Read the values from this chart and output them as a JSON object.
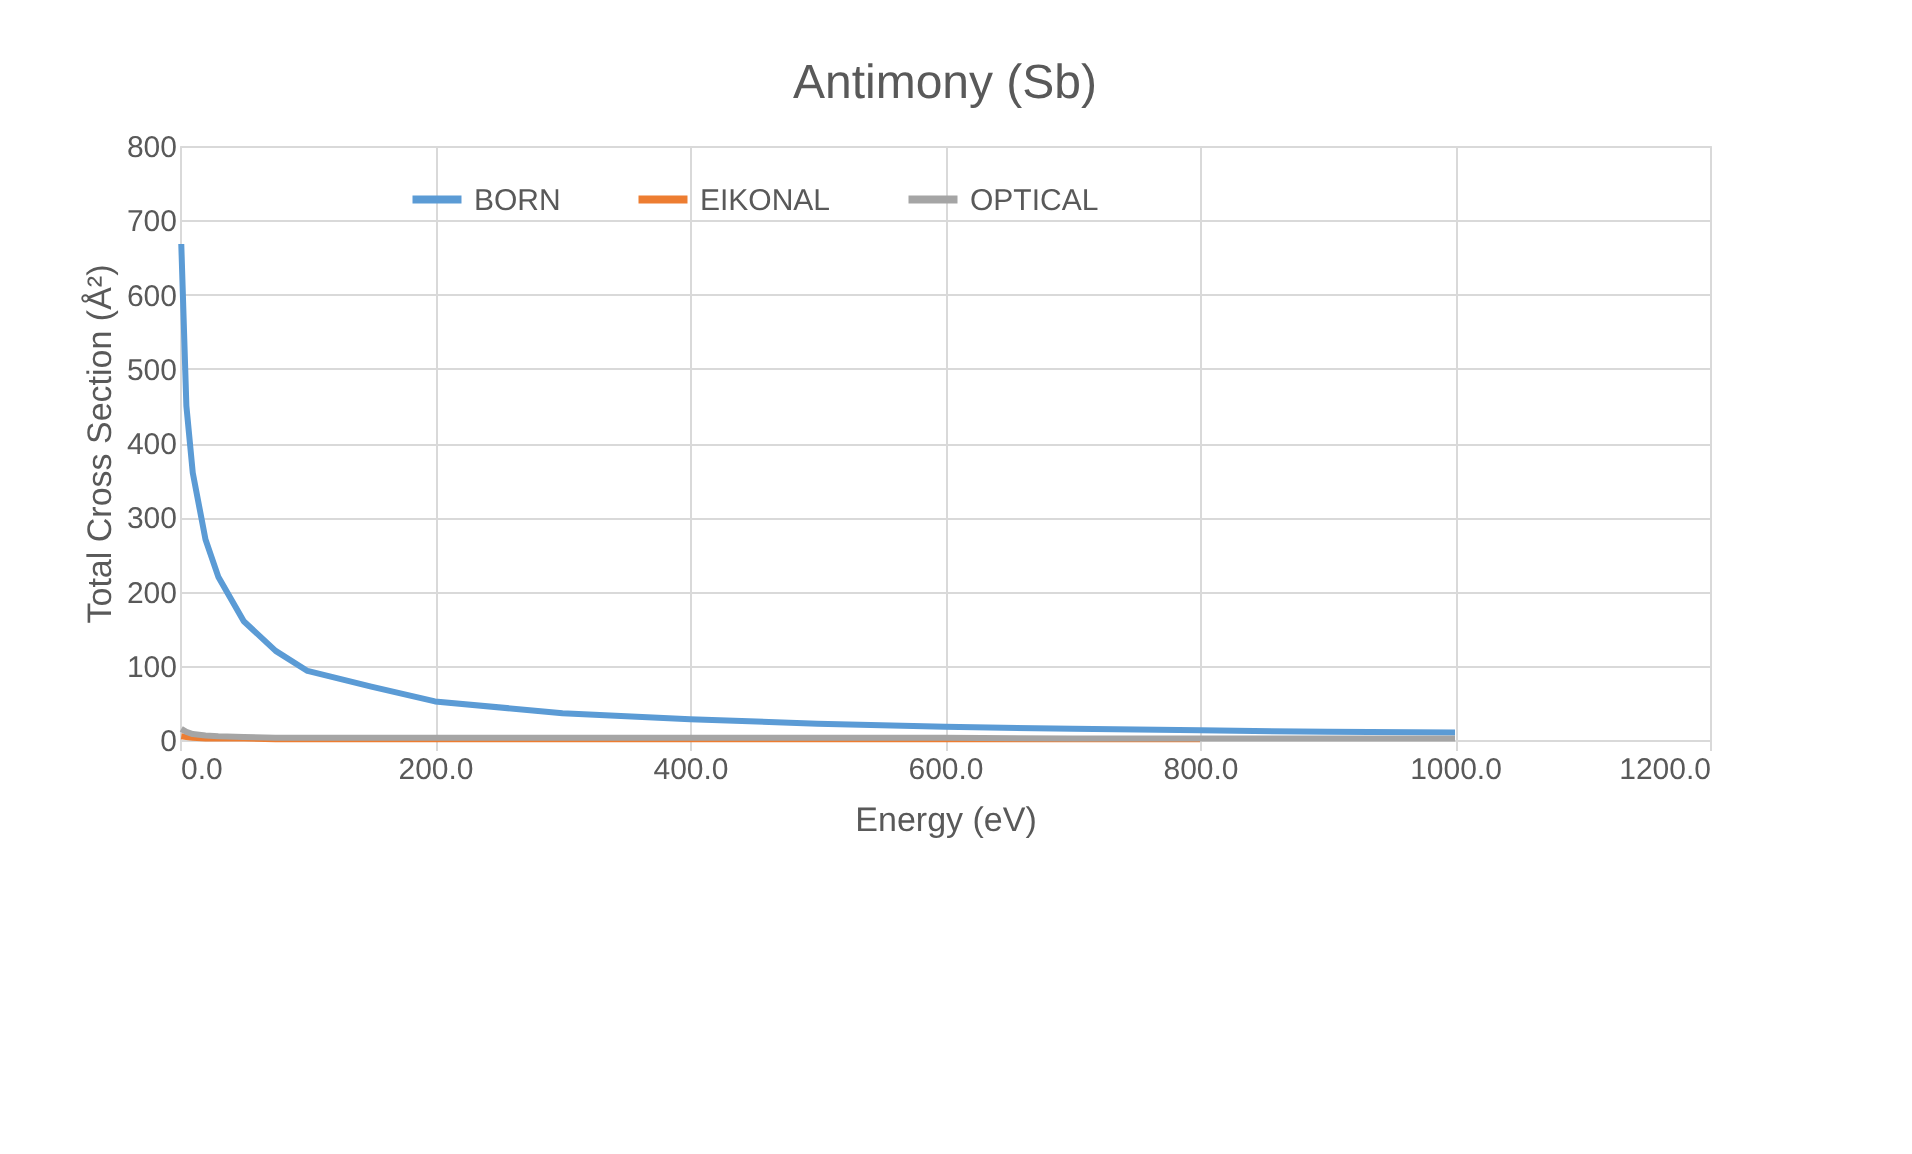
{
  "chart_data": {
    "type": "line",
    "title": "Antimony (Sb)",
    "xlabel": "Energy (eV)",
    "ylabel": "Total Cross Section (Å²)",
    "x": [
      1,
      5,
      10,
      20,
      30,
      50,
      75,
      100,
      150,
      200,
      300,
      400,
      500,
      600,
      700,
      800,
      900,
      1000
    ],
    "series": [
      {
        "name": "BORN",
        "color": "#5b9bd5",
        "values": [
          668,
          450,
          360,
          270,
          220,
          160,
          120,
          93,
          72,
          52,
          36,
          28,
          22,
          18,
          15,
          13,
          11,
          10
        ]
      },
      {
        "name": "EIKONAL",
        "color": "#ed7d31",
        "values": [
          5,
          4,
          3,
          2,
          2,
          2,
          1,
          1,
          1,
          1,
          1,
          1,
          1,
          1,
          1,
          1,
          null,
          null
        ]
      },
      {
        "name": "OPTICAL",
        "color": "#a5a5a5",
        "values": [
          15,
          11,
          8,
          6,
          5,
          4,
          3,
          3,
          3,
          3,
          3,
          3,
          3,
          3,
          2,
          2,
          2,
          2
        ]
      }
    ],
    "xlim": [
      0,
      1200
    ],
    "xticks": [
      {
        "value": 0,
        "label": "0.0"
      },
      {
        "value": 200,
        "label": "200.0"
      },
      {
        "value": 400,
        "label": "400.0"
      },
      {
        "value": 600,
        "label": "600.0"
      },
      {
        "value": 800,
        "label": "800.0"
      },
      {
        "value": 1000,
        "label": "1000.0"
      },
      {
        "value": 1200,
        "label": "1200.0"
      }
    ],
    "ylim": [
      0,
      800
    ],
    "yticks": [
      0,
      100,
      200,
      300,
      400,
      500,
      600,
      700,
      800
    ],
    "grid": true,
    "legend": "top",
    "marker": "none",
    "line_style": "solid"
  }
}
